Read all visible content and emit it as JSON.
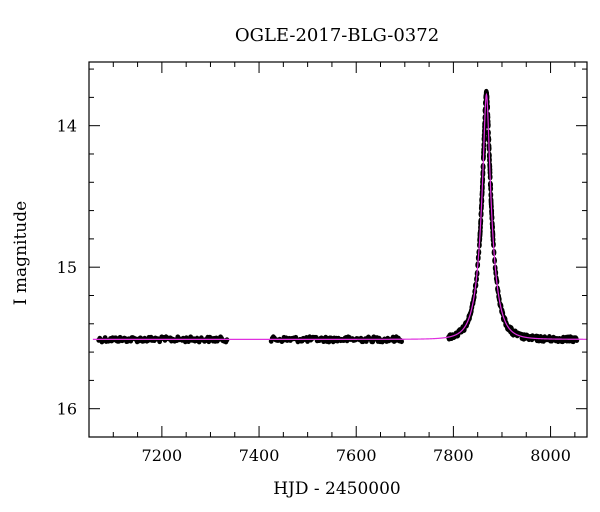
{
  "chart_data": {
    "type": "scatter",
    "title": "OGLE-2017-BLG-0372",
    "xlabel": "HJD - 2450000",
    "ylabel": "I magnitude",
    "xlim": [
      7050,
      8075
    ],
    "ylim": [
      16.2,
      13.55
    ],
    "y_inverted": true,
    "x_ticks": [
      7200,
      7400,
      7600,
      7800,
      8000
    ],
    "x_tick_labels": [
      "7200",
      "7400",
      "7600",
      "7800",
      "8000"
    ],
    "y_ticks": [
      14,
      15,
      16
    ],
    "y_tick_labels": [
      "14",
      "15",
      "16"
    ],
    "grid": false,
    "legend": "none",
    "colors": {
      "points": "#000000",
      "model": "#e030e0",
      "frame": "#000000"
    },
    "series": [
      {
        "style": "points",
        "observing_segments": [
          [
            7070,
            7335
          ],
          [
            7425,
            7695
          ],
          [
            7790,
            8055
          ]
        ],
        "sample_points": [
          {
            "x": 7100,
            "y": 15.51
          },
          {
            "x": 7200,
            "y": 15.51
          },
          {
            "x": 7300,
            "y": 15.51
          },
          {
            "x": 7450,
            "y": 15.51
          },
          {
            "x": 7550,
            "y": 15.51
          },
          {
            "x": 7650,
            "y": 15.51
          },
          {
            "x": 7800,
            "y": 15.5
          },
          {
            "x": 7830,
            "y": 15.35
          },
          {
            "x": 7850,
            "y": 14.95
          },
          {
            "x": 7862,
            "y": 14.3
          },
          {
            "x": 7868,
            "y": 13.78
          },
          {
            "x": 7875,
            "y": 14.3
          },
          {
            "x": 7885,
            "y": 15.0
          },
          {
            "x": 7910,
            "y": 15.4
          },
          {
            "x": 7950,
            "y": 15.49
          },
          {
            "x": 8050,
            "y": 15.51
          }
        ]
      },
      {
        "style": "line",
        "model": {
          "baseline": 15.51,
          "peak": 13.78,
          "t0": 7868,
          "tE": 25,
          "u0": 0.21
        }
      }
    ]
  }
}
